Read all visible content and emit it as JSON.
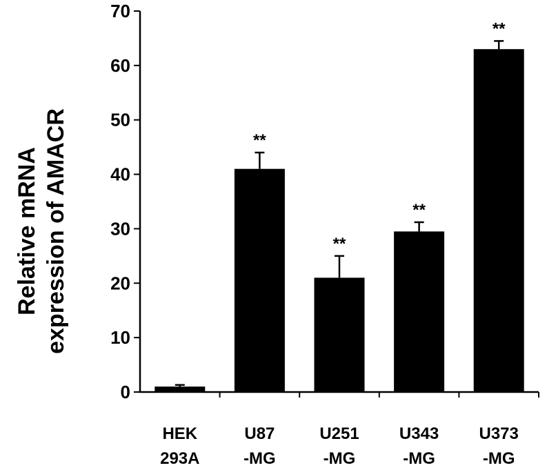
{
  "chart_data": {
    "type": "bar",
    "categories": [
      [
        "HEK",
        "293A"
      ],
      [
        "U87",
        "-MG"
      ],
      [
        "U251",
        "-MG"
      ],
      [
        "U343",
        "-MG"
      ],
      [
        "U373",
        "-MG"
      ]
    ],
    "values": [
      1,
      41,
      21,
      29.5,
      63
    ],
    "errors": [
      0.3,
      3,
      4,
      1.7,
      1.5
    ],
    "significance": [
      "",
      "**",
      "**",
      "**",
      "**"
    ],
    "ylabel_lines": [
      "Relative  mRNA",
      "expression of AMACR"
    ],
    "ylim": [
      0,
      70
    ],
    "yticks": [
      0,
      10,
      20,
      30,
      40,
      50,
      60,
      70
    ],
    "bar_color": "#000000",
    "grid": false,
    "legend": "none"
  }
}
